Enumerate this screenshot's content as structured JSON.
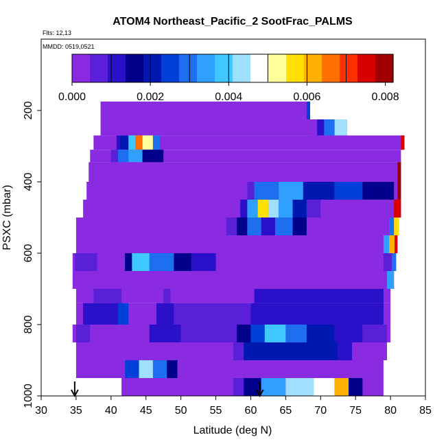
{
  "chart_data": {
    "type": "heatmap",
    "title": "ATOM4 Northeast_Pacific_2 SootFrac_PALMS",
    "annotations": {
      "flights": "Flts: 12,13",
      "dates": "MMDD: 0519,0521"
    },
    "xlabel": "Latitude (deg N)",
    "ylabel": "PSXC (mbar)",
    "xlim": [
      30,
      85
    ],
    "ylim": [
      1000,
      0
    ],
    "x_ticks": [
      "30",
      "35",
      "40",
      "45",
      "50",
      "55",
      "60",
      "65",
      "70",
      "75",
      "80",
      "85"
    ],
    "y_ticks": [
      "200",
      "400",
      "600",
      "800",
      "1000"
    ],
    "colorbar": {
      "range": [
        0,
        0.0082
      ],
      "ticks": [
        "0.000",
        "0.002",
        "0.004",
        "0.006",
        "0.008"
      ],
      "colors": [
        "#8a2be2",
        "#5a20d8",
        "#2a10c8",
        "#00008b",
        "#0018b0",
        "#0040d8",
        "#1e6ff0",
        "#2fa0ff",
        "#3fc8ff",
        "#9fe0ff",
        "#ffffff",
        "#ffff99",
        "#ffe000",
        "#ffb000",
        "#ff7000",
        "#ff3000",
        "#d80000",
        "#a00000"
      ]
    },
    "bands": [
      {
        "y": [
          175,
          225
        ],
        "x": [
          38.5,
          68.5
        ],
        "cells": [
          [
            68.0,
            68.5,
            0.0025
          ]
        ]
      },
      {
        "y": [
          225,
          270
        ],
        "x": [
          38.5,
          73.8
        ],
        "cells": [
          [
            68.5,
            69.5,
            0.0003
          ],
          [
            69.5,
            70.5,
            0.0012
          ],
          [
            70.5,
            72.0,
            0.003
          ],
          [
            72.0,
            73.8,
            0.0045
          ]
        ]
      },
      {
        "y": [
          270,
          310
        ],
        "x": [
          37.5,
          82.0
        ],
        "cells": [
          [
            40.8,
            41.3,
            0.001
          ],
          [
            41.3,
            42.5,
            0.0022
          ],
          [
            42.5,
            43.5,
            0.004
          ],
          [
            43.5,
            44.5,
            0.0065
          ],
          [
            44.5,
            46.0,
            0.0052
          ],
          [
            46.0,
            47.0,
            0.003
          ],
          [
            81.5,
            82.0,
            0.0075
          ]
        ]
      },
      {
        "y": [
          310,
          345
        ],
        "x": [
          37.0,
          81.5
        ],
        "cells": [
          [
            40.0,
            41.0,
            0.0007
          ],
          [
            41.0,
            42.5,
            0.0028
          ],
          [
            42.5,
            44.5,
            0.0035
          ],
          [
            44.5,
            47.5,
            0.0015
          ]
        ]
      },
      {
        "y": [
          345,
          400
        ],
        "x": [
          36.8,
          81.5
        ],
        "cells": [
          [
            81.0,
            81.5,
            0.0078
          ]
        ]
      },
      {
        "y": [
          400,
          450
        ],
        "x": [
          36.5,
          81.5
        ],
        "cells": [
          [
            59.5,
            60.5,
            0.0005
          ],
          [
            60.5,
            64.0,
            0.0028
          ],
          [
            64.0,
            67.5,
            0.0033
          ],
          [
            67.5,
            72.0,
            0.002
          ],
          [
            72.0,
            76.0,
            0.0025
          ],
          [
            76.0,
            80.5,
            0.0015
          ],
          [
            81.0,
            81.5,
            0.0078
          ]
        ]
      },
      {
        "y": [
          450,
          500
        ],
        "x": [
          36.0,
          81.5
        ],
        "cells": [
          [
            58.5,
            59.5,
            0.001
          ],
          [
            59.5,
            61.0,
            0.0032
          ],
          [
            61.0,
            62.5,
            0.0055
          ],
          [
            62.5,
            64.0,
            0.0045
          ],
          [
            64.0,
            66.0,
            0.0035
          ],
          [
            66.0,
            68.0,
            0.002
          ],
          [
            68.0,
            70.0,
            0.0008
          ],
          [
            80.5,
            81.5,
            0.0075
          ]
        ]
      },
      {
        "y": [
          500,
          550
        ],
        "x": [
          35.0,
          81.2
        ],
        "cells": [
          [
            56.5,
            58.0,
            0.0008
          ],
          [
            58.0,
            59.5,
            0.0018
          ],
          [
            59.5,
            61.5,
            0.0028
          ],
          [
            61.5,
            63.5,
            0.0012
          ],
          [
            63.5,
            66.0,
            0.003
          ],
          [
            66.0,
            68.0,
            0.0015
          ],
          [
            79.8,
            80.5,
            0.003
          ],
          [
            80.5,
            81.2,
            0.0055
          ]
        ]
      },
      {
        "y": [
          550,
          600
        ],
        "x": [
          35.0,
          81.0
        ],
        "cells": [
          [
            35.2,
            36.2,
            0.0003
          ],
          [
            79.0,
            79.8,
            0.0035
          ],
          [
            79.8,
            80.6,
            0.006
          ],
          [
            80.6,
            81.0,
            0.0075
          ]
        ]
      },
      {
        "y": [
          600,
          650
        ],
        "x": [
          34.5,
          80.8
        ],
        "cells": [
          [
            34.8,
            36.0,
            0.0008
          ],
          [
            36.0,
            38.0,
            0.0006
          ],
          [
            42.0,
            43.0,
            0.0015
          ],
          [
            43.0,
            45.5,
            0.004
          ],
          [
            45.5,
            49.0,
            0.003
          ],
          [
            49.0,
            51.5,
            0.0018
          ],
          [
            51.5,
            55.0,
            0.001
          ],
          [
            55.5,
            56.5,
            0.0004
          ],
          [
            79.0,
            80.2,
            0.0008
          ],
          [
            80.2,
            80.8,
            0.003
          ]
        ]
      },
      {
        "y": [
          650,
          700
        ],
        "x": [
          34.5,
          80.5
        ],
        "cells": [
          [
            79.5,
            80.5,
            0.0035
          ]
        ]
      },
      {
        "y": [
          700,
          740
        ],
        "x": [
          35.0,
          80.0
        ],
        "cells": [
          [
            37.5,
            41.5,
            0.0009
          ],
          [
            47.5,
            48.5,
            0.0008
          ],
          [
            60.5,
            79.0,
            0.001
          ]
        ]
      },
      {
        "y": [
          740,
          800
        ],
        "x": [
          35.0,
          80.0
        ],
        "cells": [
          [
            36.0,
            41.5,
            0.0012
          ],
          [
            41.0,
            42.5,
            0.0025
          ],
          [
            46.5,
            49.0,
            0.001
          ],
          [
            49.0,
            60.0,
            0.0005
          ],
          [
            60.0,
            79.0,
            0.0013
          ]
        ]
      },
      {
        "y": [
          800,
          850
        ],
        "x": [
          34.5,
          80.0
        ],
        "cells": [
          [
            35.0,
            37.0,
            0.0005
          ],
          [
            39.5,
            42.0,
            0.0003
          ],
          [
            45.5,
            50.0,
            0.0012
          ],
          [
            50.0,
            58.0,
            0.0008
          ],
          [
            58.0,
            60.0,
            0.0015
          ],
          [
            60.0,
            62.0,
            0.0025
          ],
          [
            62.0,
            65.0,
            0.004
          ],
          [
            65.0,
            68.0,
            0.003
          ],
          [
            68.0,
            72.0,
            0.002
          ],
          [
            72.0,
            76.0,
            0.0012
          ],
          [
            76.0,
            79.5,
            0.0007
          ]
        ]
      },
      {
        "y": [
          850,
          900
        ],
        "x": [
          35.0,
          79.5
        ],
        "cells": [
          [
            57.5,
            59.0,
            0.0008
          ],
          [
            59.0,
            72.5,
            0.002
          ],
          [
            72.5,
            74.5,
            0.001
          ]
        ]
      },
      {
        "y": [
          900,
          950
        ],
        "x": [
          35.0,
          79.0
        ],
        "cells": [
          [
            42.0,
            44.0,
            0.0025
          ],
          [
            44.0,
            46.0,
            0.0045
          ],
          [
            46.0,
            48.0,
            0.003
          ],
          [
            48.0,
            49.5,
            0.0015
          ]
        ]
      },
      {
        "y": [
          950,
          1000
        ],
        "x": [
          41.5,
          79.0
        ],
        "cells": [
          [
            57.5,
            59.0,
            0.0008
          ],
          [
            59.0,
            61.5,
            0.0015
          ],
          [
            61.5,
            65.0,
            0.0035
          ],
          [
            65.0,
            69.0,
            0.0042
          ],
          [
            69.0,
            72.0,
            0.005
          ],
          [
            72.0,
            74.0,
            0.006
          ],
          [
            74.0,
            76.0,
            0.0015
          ]
        ]
      }
    ],
    "markers": [
      34.8,
      61.3
    ]
  }
}
